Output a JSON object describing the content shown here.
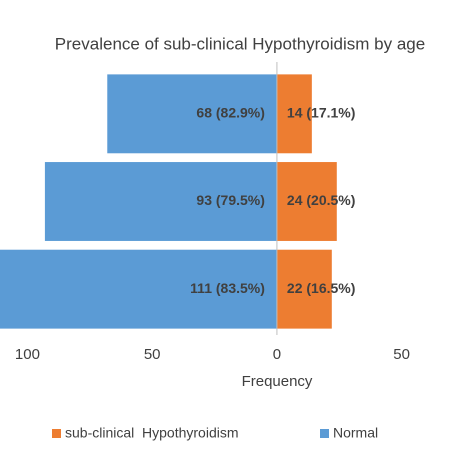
{
  "chart_data": {
    "type": "bar",
    "orientation": "horizontal",
    "title": "Prevalence of sub-clinical Hypothyroidism by age",
    "xlabel": "Frequency",
    "categories": [
      null,
      null,
      null
    ],
    "series": [
      {
        "name": "sub-clinical  Hypothyroidism",
        "color": "#ed7d31",
        "values": [
          14,
          24,
          22
        ],
        "value_labels": [
          "14 (17.1%)",
          "24 (20.5%)",
          "22 (16.5%)"
        ]
      },
      {
        "name": "Normal",
        "color": "#5b9bd5",
        "values": [
          -68,
          -93,
          -111
        ],
        "value_labels": [
          "68 (82.9%)",
          "93 (79.5%)",
          "111 (83.5%)"
        ]
      }
    ],
    "xlim": [
      -111,
      79
    ],
    "xticks": [
      {
        "value": -100,
        "label": "100"
      },
      {
        "value": -50,
        "label": "50"
      },
      0,
      50
    ],
    "legend": "bottom"
  }
}
